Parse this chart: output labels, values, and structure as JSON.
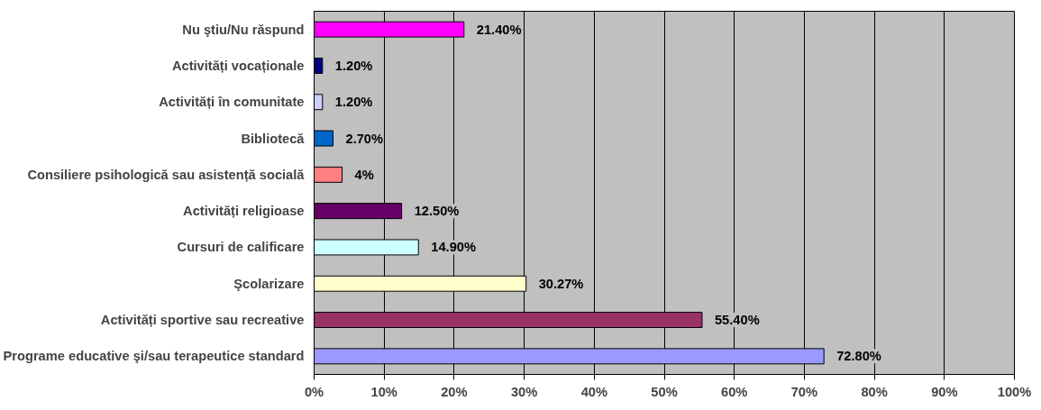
{
  "chart_data": {
    "type": "bar",
    "orientation": "horizontal",
    "categories": [
      "Nu ştiu/Nu răspund",
      "Activități vocaționale",
      "Activități în comunitate",
      "Bibliotecă",
      "Consiliere psihologică sau asistență socială",
      "Activități religioase",
      "Cursuri de calificare",
      "Şcolarizare",
      "Activități sportive sau recreative",
      "Programe educative şi/sau terapeutice standard"
    ],
    "values": [
      21.4,
      1.2,
      1.2,
      2.7,
      4,
      12.5,
      14.9,
      30.27,
      55.4,
      72.8
    ],
    "colors": [
      "#ff00ff",
      "#000080",
      "#ccccff",
      "#0066cc",
      "#ff8080",
      "#660066",
      "#ccffff",
      "#ffffcc",
      "#993366",
      "#9999ff"
    ],
    "value_labels": [
      "21.40%",
      "1.20%",
      "1.20%",
      "2.70%",
      "4%",
      "12.50%",
      "14.90%",
      "30.27%",
      "55.40%",
      "72.80%"
    ],
    "xlim": [
      0,
      100
    ],
    "xticks": [
      {
        "value": 0,
        "label": "0%"
      },
      {
        "value": 10,
        "label": "10%"
      },
      {
        "value": 20,
        "label": "20%"
      },
      {
        "value": 30,
        "label": "30%"
      },
      {
        "value": 40,
        "label": "40%"
      },
      {
        "value": 50,
        "label": "50%"
      },
      {
        "value": 60,
        "label": "60%"
      },
      {
        "value": 70,
        "label": "70%"
      },
      {
        "value": 80,
        "label": "80%"
      },
      {
        "value": 90,
        "label": "90%"
      },
      {
        "value": 100,
        "label": "100%"
      }
    ],
    "grid": "x"
  }
}
